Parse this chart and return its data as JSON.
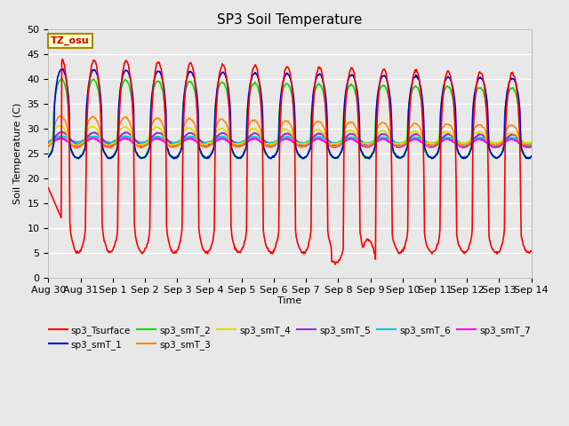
{
  "title": "SP3 Soil Temperature",
  "xlabel": "Time",
  "ylabel": "Soil Temperature (C)",
  "ylim": [
    0,
    50
  ],
  "tz_label": "TZ_osu",
  "background_color": "#e8e8e8",
  "plot_bg_color": "#e8e8e8",
  "series_colors": {
    "sp3_Tsurface": "#ff0000",
    "sp3_smT_1": "#0000dd",
    "sp3_smT_2": "#00dd00",
    "sp3_smT_3": "#ff8800",
    "sp3_smT_4": "#dddd00",
    "sp3_smT_5": "#9933cc",
    "sp3_smT_6": "#00cccc",
    "sp3_smT_7": "#ff00ff"
  },
  "tick_labels": [
    "Aug 30",
    "Aug 31",
    "Sep 1",
    "Sep 2",
    "Sep 3",
    "Sep 4",
    "Sep 5",
    "Sep 6",
    "Sep 7",
    "Sep 8",
    "Sep 9",
    "Sep 10",
    "Sep 11",
    "Sep 12",
    "Sep 13",
    "Sep 14"
  ],
  "n_days": 15
}
